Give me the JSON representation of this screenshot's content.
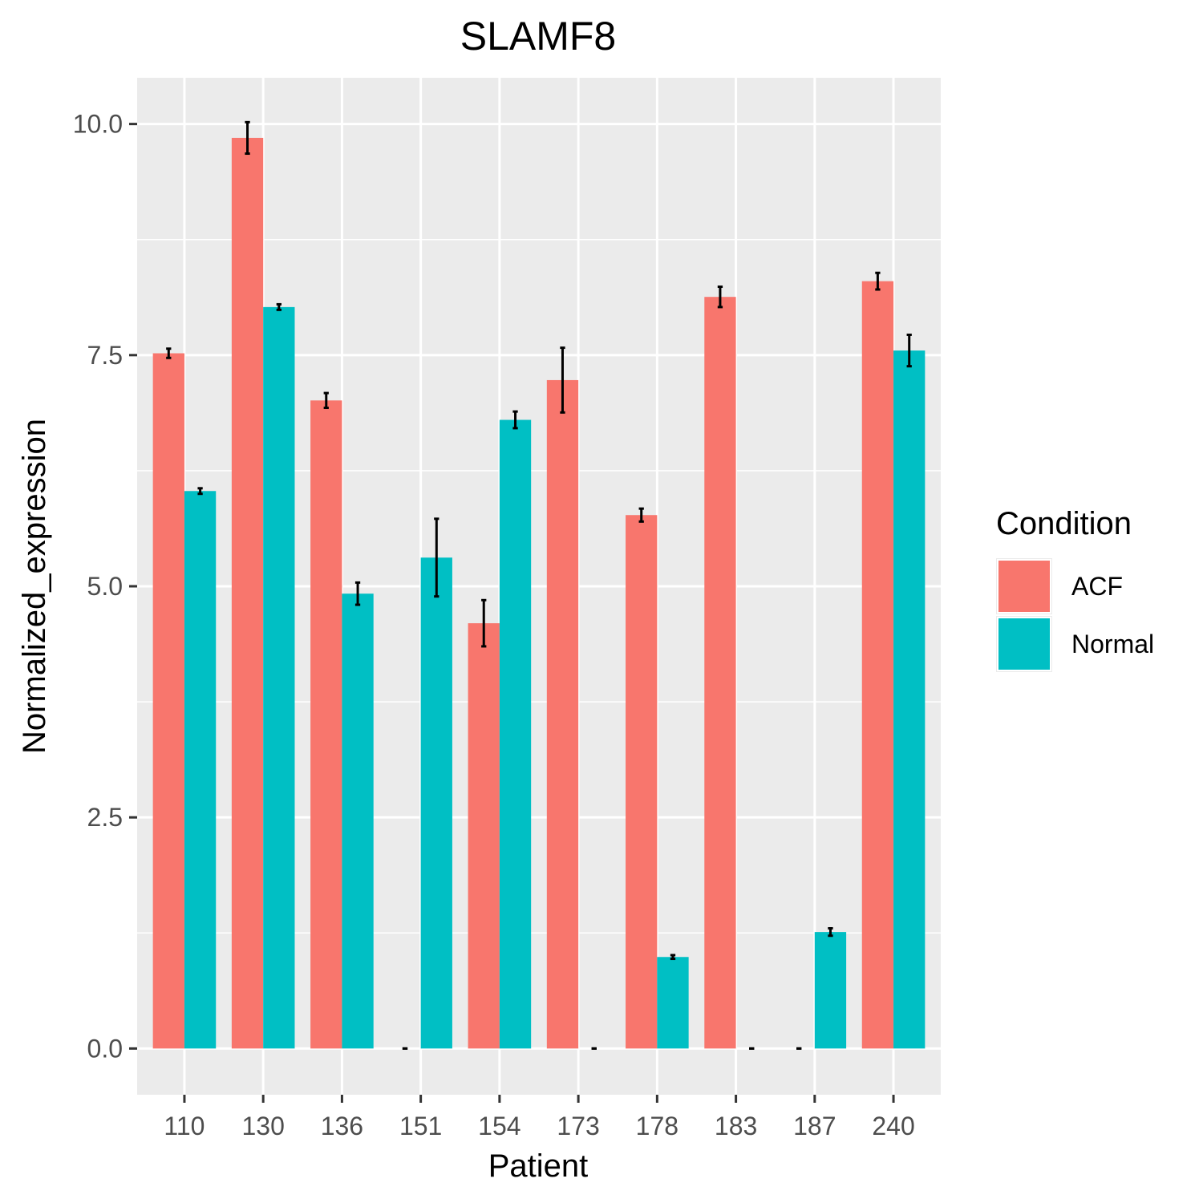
{
  "chart_data": {
    "type": "bar",
    "title": "SLAMF8",
    "xlabel": "Patient",
    "ylabel": "Normalized_expression",
    "categories": [
      "110",
      "130",
      "136",
      "151",
      "154",
      "173",
      "178",
      "183",
      "187",
      "240"
    ],
    "ylim": [
      -0.5,
      10.5
    ],
    "yticks": [
      0.0,
      2.5,
      5.0,
      7.5,
      10.0
    ],
    "ytick_labels": [
      "0.0",
      "2.5",
      "5.0",
      "7.5",
      "10.0"
    ],
    "grid": true,
    "legend": {
      "title": "Condition",
      "position": "right"
    },
    "series": [
      {
        "name": "ACF",
        "color": "#F8766D",
        "values": [
          7.52,
          9.85,
          7.01,
          0.0,
          4.6,
          7.23,
          5.77,
          8.13,
          0.0,
          8.3
        ],
        "errors": [
          0.05,
          0.17,
          0.08,
          0.0,
          0.25,
          0.35,
          0.07,
          0.11,
          0.0,
          0.09
        ]
      },
      {
        "name": "Normal",
        "color": "#00BFC4",
        "values": [
          6.03,
          8.02,
          4.92,
          5.31,
          6.8,
          0.0,
          0.99,
          0.0,
          1.26,
          7.55
        ],
        "errors": [
          0.03,
          0.03,
          0.12,
          0.42,
          0.09,
          0.0,
          0.02,
          0.0,
          0.04,
          0.17
        ]
      }
    ]
  }
}
